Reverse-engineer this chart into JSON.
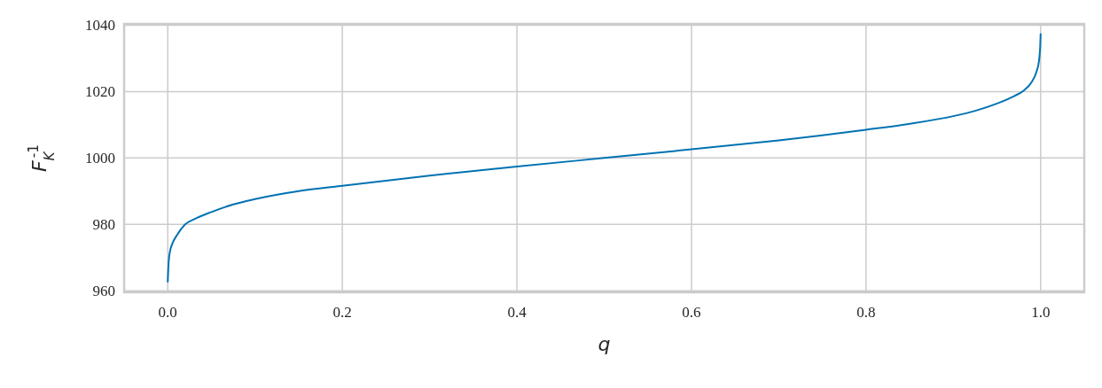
{
  "chart_data": {
    "type": "line",
    "xlabel": "q",
    "ylabel": "F$_{K}$$^{-1}$",
    "x": [
      0,
      0.0005,
      0.001,
      0.002,
      0.005,
      0.01,
      0.02,
      0.03,
      0.05,
      0.075,
      0.1,
      0.15,
      0.2,
      0.3,
      0.4,
      0.5,
      0.6,
      0.7,
      0.8,
      0.85,
      0.9,
      0.925,
      0.95,
      0.97,
      0.98,
      0.99,
      0.995,
      0.998,
      0.999,
      0.9995,
      1
    ],
    "series": [
      {
        "color": "#0072b2",
        "values": [
          962.7,
          966,
          968.5,
          971,
          974,
          976.5,
          980,
          981.5,
          983.7,
          986,
          987.6,
          990,
          991.6,
          994.7,
          997.4,
          1000,
          1002.6,
          1005.3,
          1008.5,
          1010.3,
          1012.6,
          1014.2,
          1016.4,
          1018.7,
          1020.2,
          1023,
          1025.8,
          1029,
          1031.5,
          1033.5,
          1037.3
        ]
      }
    ],
    "xlim": [
      -0.05,
      1.05
    ],
    "ylim": [
      959.5,
      1040.4
    ],
    "xticks": [
      {
        "value": 0,
        "label": "0.0"
      },
      {
        "value": 0.2,
        "label": "0.2"
      },
      {
        "value": 0.4,
        "label": "0.4"
      },
      {
        "value": 0.6,
        "label": "0.6"
      },
      {
        "value": 0.8,
        "label": "0.8"
      },
      {
        "value": 1,
        "label": "1.0"
      }
    ],
    "yticks": [
      960,
      980,
      1000,
      1020,
      1040
    ],
    "grid": true
  }
}
